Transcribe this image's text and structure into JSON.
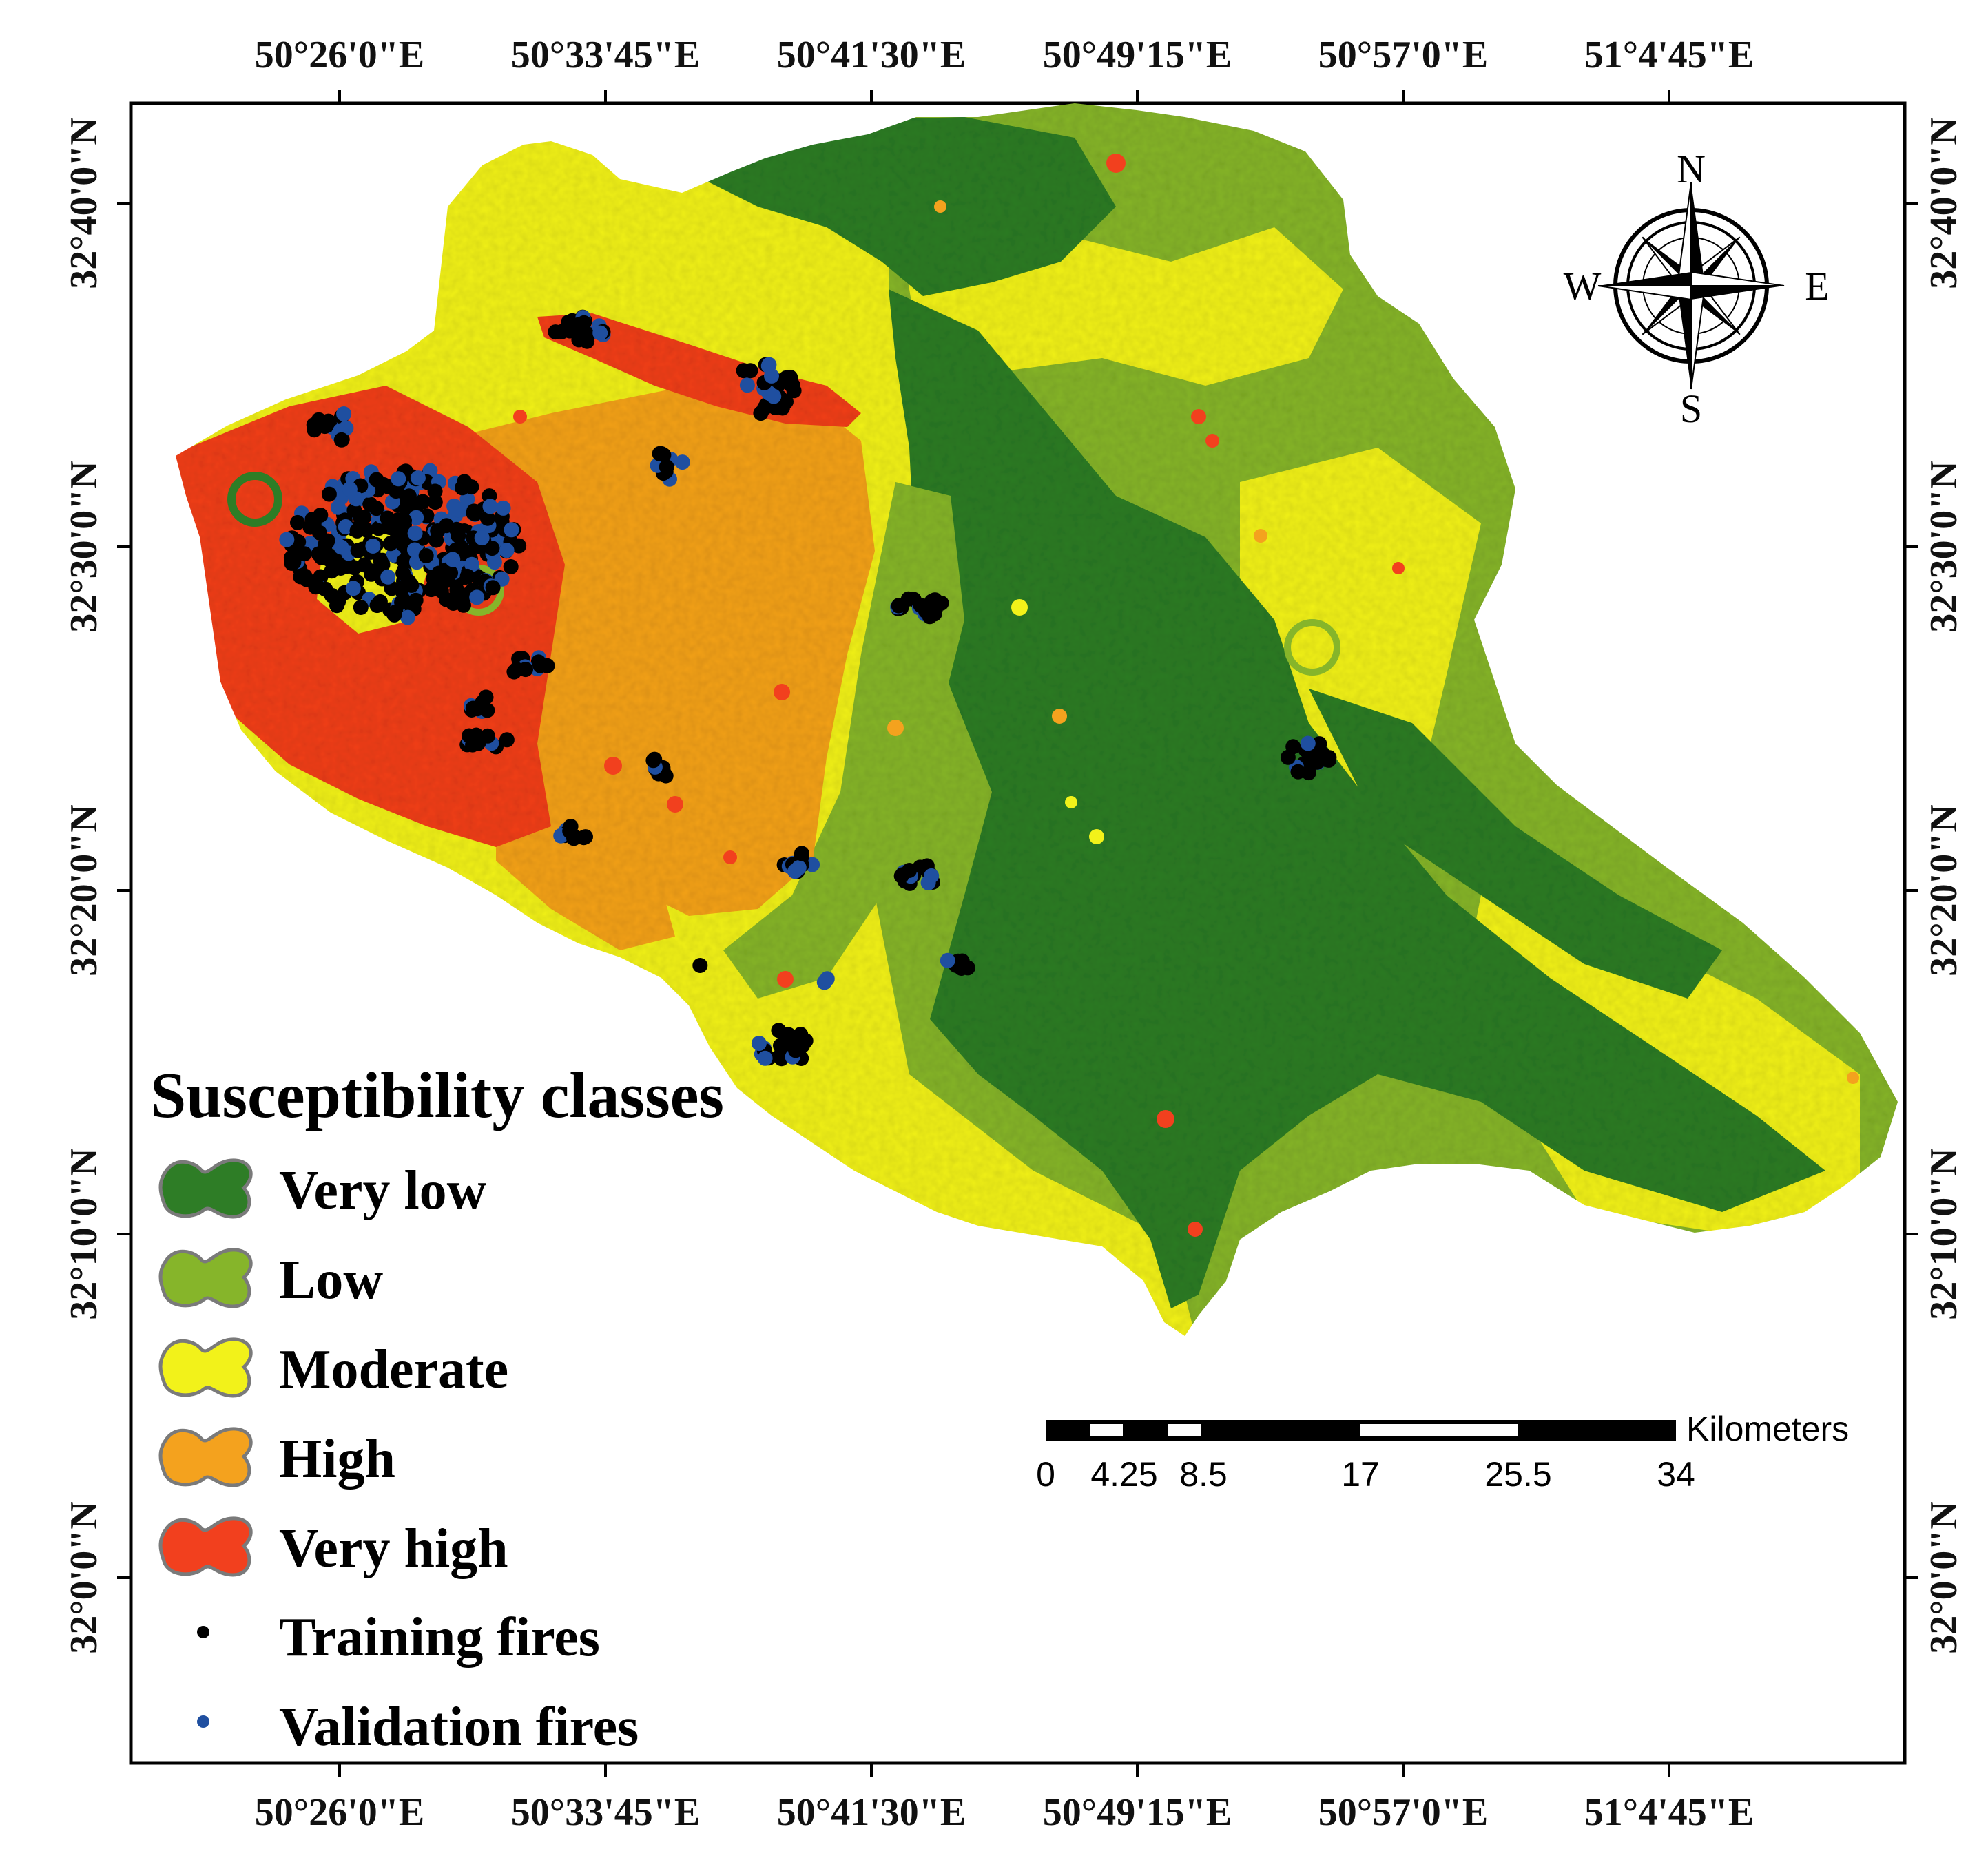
{
  "map": {
    "top_lon_labels": [
      "50°26'0\"E",
      "50°33'45\"E",
      "50°41'30\"E",
      "50°49'15\"E",
      "50°57'0\"E",
      "51°4'45\"E"
    ],
    "bottom_lon_labels": [
      "50°26'0\"E",
      "50°33'45\"E",
      "50°41'30\"E",
      "50°49'15\"E",
      "50°57'0\"E",
      "51°4'45\"E"
    ],
    "left_lat_labels": [
      "32°40'0\"N",
      "32°30'0\"N",
      "32°20'0\"N",
      "32°10'0\"N",
      "32°0'0\"N"
    ],
    "right_lat_labels": [
      "32°40'0\"N",
      "32°30'0\"N",
      "32°20'0\"N",
      "32°10'0\"N",
      "32°0'0\"N"
    ]
  },
  "legend": {
    "title": "Susceptibility classes",
    "classes": [
      {
        "label": "Very low",
        "color": "#2e7d26"
      },
      {
        "label": "Low",
        "color": "#86b52a"
      },
      {
        "label": "Moderate",
        "color": "#f2f21a"
      },
      {
        "label": "High",
        "color": "#f4a21e"
      },
      {
        "label": "Very high",
        "color": "#f2401e"
      }
    ],
    "points": [
      {
        "label": "Training fires",
        "color": "#000000"
      },
      {
        "label": "Validation fires",
        "color": "#1f4fa0"
      }
    ]
  },
  "compass": {
    "n": "N",
    "s": "S",
    "e": "E",
    "w": "W"
  },
  "scale_bar": {
    "unit": "Kilometers",
    "ticks": [
      "0",
      "4.25",
      "8.5",
      "17",
      "25.5",
      "34"
    ]
  }
}
